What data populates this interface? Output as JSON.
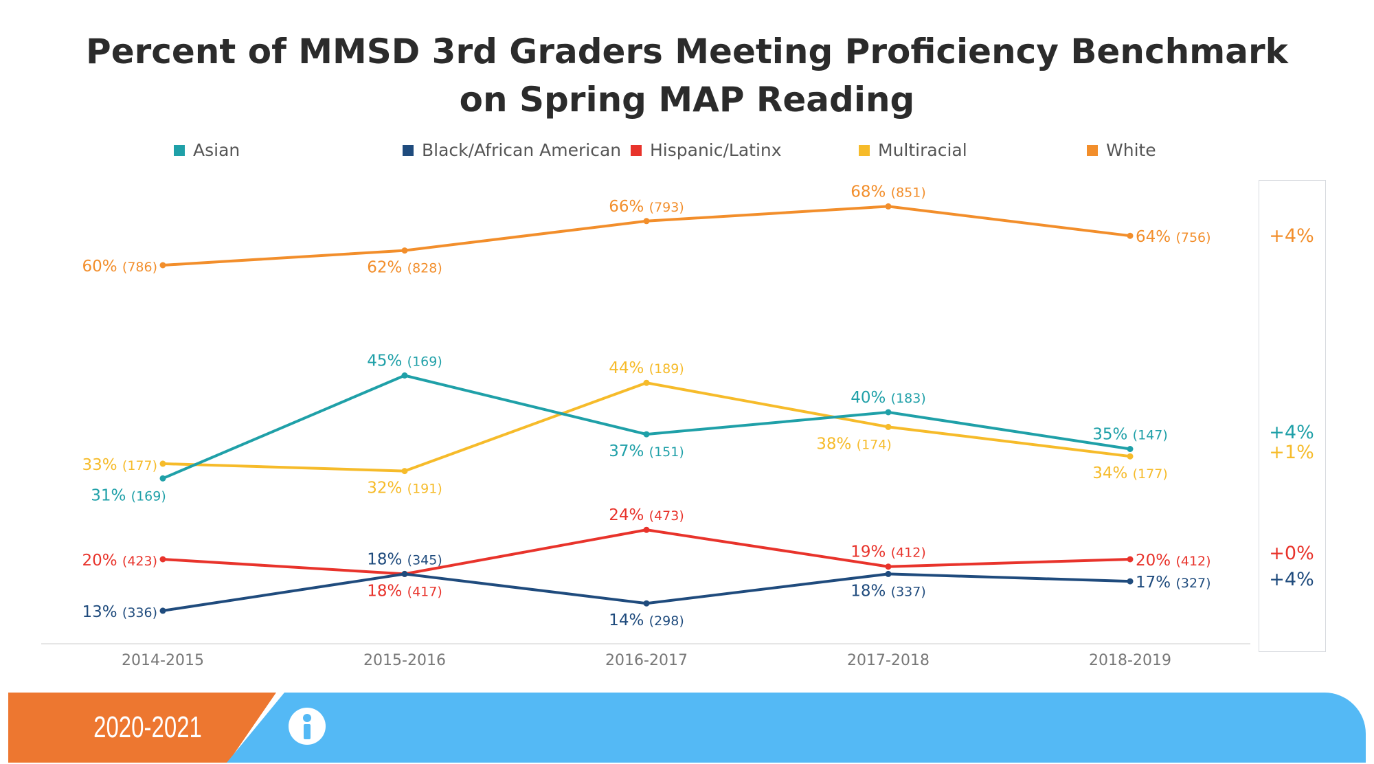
{
  "chart_data": {
    "type": "line",
    "title": "Percent of MMSD 3rd Graders Meeting Proficiency Benchmark on Spring MAP Reading",
    "title_lines": [
      "Percent of MMSD 3rd Graders Meeting Proficiency Benchmark",
      "on Spring MAP Reading"
    ],
    "categories": [
      "2014-2015",
      "2015-2016",
      "2016-2017",
      "2017-2018",
      "2018-2019"
    ],
    "legend_position": "top",
    "grid": false,
    "series": [
      {
        "name": "Asian",
        "color": "#1fa0a8",
        "values": [
          31,
          45,
          37,
          40,
          35
        ],
        "counts": [
          169,
          169,
          151,
          183,
          147
        ],
        "change": "+4%"
      },
      {
        "name": "Black/African American",
        "color": "#1f4b7d",
        "values": [
          13,
          18,
          14,
          18,
          17
        ],
        "counts": [
          336,
          345,
          298,
          337,
          327
        ],
        "change": "+4%"
      },
      {
        "name": "Hispanic/Latinx",
        "color": "#e8332b",
        "values": [
          20,
          18,
          24,
          19,
          20
        ],
        "counts": [
          423,
          417,
          473,
          412,
          412
        ],
        "change": "+0%"
      },
      {
        "name": "Multiracial",
        "color": "#f6bb2a",
        "values": [
          33,
          32,
          44,
          38,
          34
        ],
        "counts": [
          177,
          191,
          189,
          174,
          177
        ],
        "change": "+1%"
      },
      {
        "name": "White",
        "color": "#f28e2b",
        "values": [
          60,
          62,
          66,
          68,
          64
        ],
        "counts": [
          786,
          828,
          793,
          851,
          756
        ],
        "change": "+4%"
      }
    ]
  },
  "footer": {
    "year": "2020-2021",
    "icon": "info-icon",
    "orange": "#ed7730",
    "blue": "#54b9f5"
  }
}
